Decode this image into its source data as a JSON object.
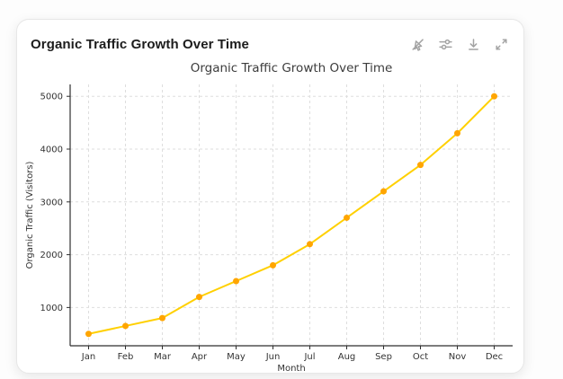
{
  "card": {
    "header": {
      "title": "Organic Traffic Growth Over Time",
      "icons": [
        {
          "name": "pointer-off-icon"
        },
        {
          "name": "sliders-icon"
        },
        {
          "name": "download-icon"
        },
        {
          "name": "expand-icon"
        }
      ]
    }
  },
  "colors": {
    "line": "#FFD000",
    "marker": "#FFA500",
    "grid": "#dedede",
    "spine": "#2f2f2f",
    "tick_label": "#333333",
    "chart_title": "#3c3c3c",
    "icon": "#a3a3a3"
  },
  "chart_data": {
    "type": "line",
    "title": "Organic Traffic Growth Over Time",
    "xlabel": "Month",
    "ylabel": "Organic Traffic (Visitors)",
    "categories": [
      "Jan",
      "Feb",
      "Mar",
      "Apr",
      "May",
      "Jun",
      "Jul",
      "Aug",
      "Sep",
      "Oct",
      "Nov",
      "Dec"
    ],
    "values": [
      500,
      650,
      800,
      1200,
      1500,
      1800,
      2200,
      2700,
      3200,
      3700,
      4300,
      5000
    ],
    "yticks": [
      1000,
      2000,
      3000,
      4000,
      5000
    ],
    "ylim": [
      275,
      5225
    ],
    "grid": true,
    "grid_style": "dashed",
    "legend": "none",
    "line_color": "#FFD000",
    "marker_color": "#FFA500"
  }
}
